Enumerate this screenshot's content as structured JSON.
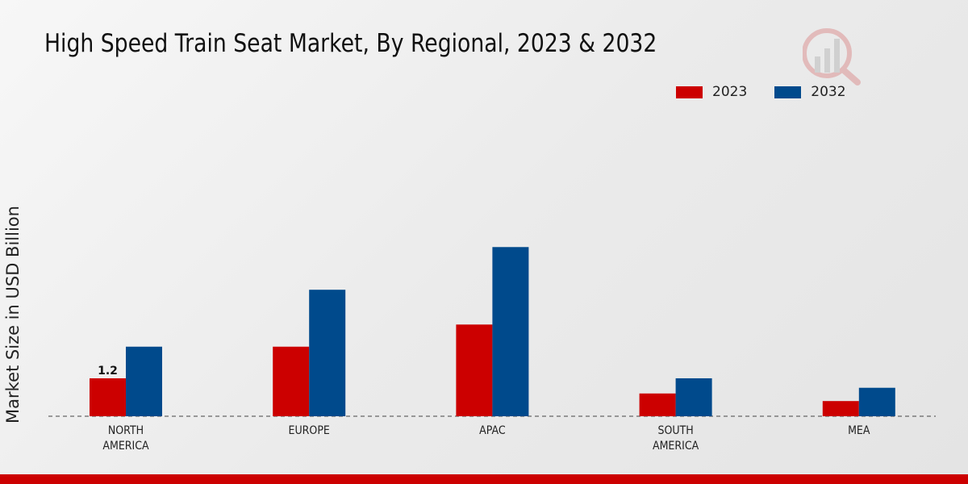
{
  "chart_data": {
    "type": "bar",
    "title": "High Speed Train Seat Market, By Regional, 2023 & 2032",
    "xlabel": "",
    "ylabel": "Market Size in USD Billion",
    "categories": [
      [
        "NORTH",
        "AMERICA"
      ],
      [
        "EUROPE"
      ],
      [
        "APAC"
      ],
      [
        "SOUTH",
        "AMERICA"
      ],
      [
        "MEA"
      ]
    ],
    "series": [
      {
        "name": "2023",
        "color": "#cc0000",
        "values": [
          1.2,
          2.2,
          2.9,
          0.72,
          0.48
        ]
      },
      {
        "name": "2032",
        "color": "#004a8c",
        "values": [
          2.2,
          4.0,
          5.35,
          1.2,
          0.9
        ]
      }
    ],
    "data_labels": [
      {
        "series": 0,
        "index": 0,
        "text": "1.2"
      }
    ],
    "ylim": [
      0,
      11
    ],
    "grid": false,
    "legend_position": "top-right"
  },
  "colors": {
    "accent_bar": "#cc0000"
  }
}
